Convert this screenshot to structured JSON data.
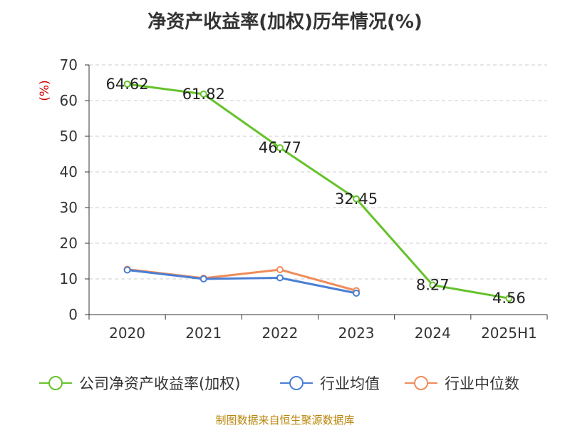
{
  "chart_data": {
    "type": "line",
    "title": "净资产收益率(加权)历年情况(%)",
    "ylabel": "(%)",
    "categories": [
      "2020",
      "2021",
      "2022",
      "2023",
      "2024",
      "2025H1"
    ],
    "ylim": [
      0,
      70
    ],
    "yticks": [
      0,
      10,
      20,
      30,
      40,
      50,
      60,
      70
    ],
    "grid": "horizontal-dashed",
    "legend_position": "bottom",
    "series": [
      {
        "name": "公司净资产收益率(加权)",
        "color": "#66c22b",
        "values": [
          64.62,
          61.82,
          46.77,
          32.45,
          8.27,
          4.56
        ],
        "labels": [
          "64.62",
          "61.82",
          "46.77",
          "32.45",
          "8.27",
          "4.56"
        ]
      },
      {
        "name": "行业均值",
        "color": "#4a7fd4",
        "values": [
          12.5,
          10.0,
          10.3,
          6.0,
          null,
          null
        ]
      },
      {
        "name": "行业中位数",
        "color": "#f08c5a",
        "values": [
          12.7,
          10.2,
          12.6,
          6.7,
          null,
          null
        ]
      }
    ]
  },
  "source_text": "制图数据来自恒生聚源数据库"
}
